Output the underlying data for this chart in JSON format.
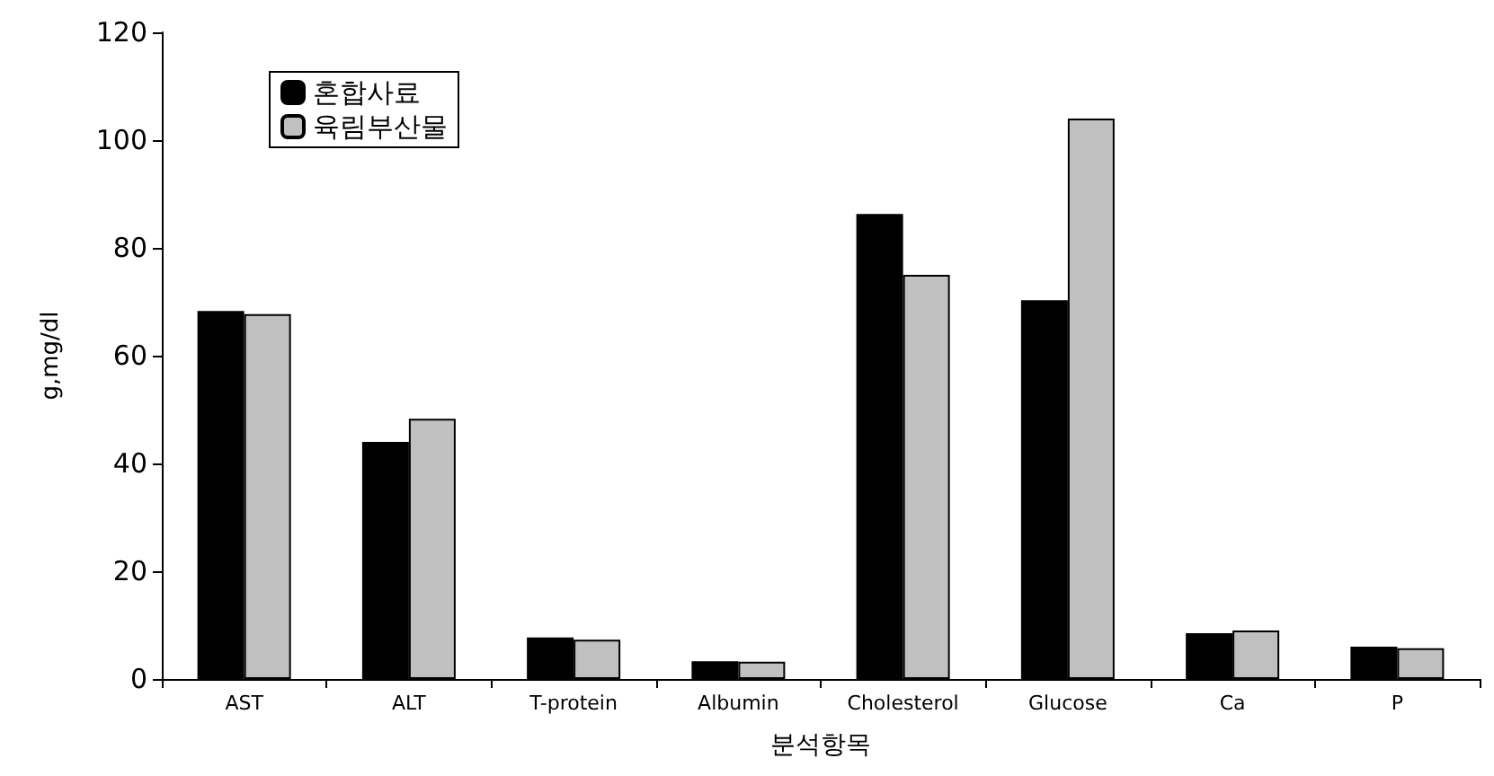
{
  "chart_data": {
    "type": "bar",
    "xlabel": "분석항목",
    "ylabel": "g,mg/dl",
    "categories": [
      "AST",
      "ALT",
      "T-protein",
      "Albumin",
      "Cholesterol",
      "Glucose",
      "Ca",
      "P"
    ],
    "series": [
      {
        "name": "혼합사료",
        "color": "#000000",
        "values": [
          68.3,
          44,
          7.7,
          3.3,
          86.3,
          70.3,
          8.5,
          6
        ]
      },
      {
        "name": "육림부산물",
        "color": "#c0c0c0",
        "values": [
          67.7,
          48.3,
          7.3,
          3.2,
          75,
          104,
          9,
          5.7
        ]
      }
    ],
    "ylim": [
      0,
      120
    ],
    "yticks": [
      0,
      20,
      40,
      60,
      80,
      100,
      120
    ],
    "grid": false,
    "legend": "top left"
  }
}
